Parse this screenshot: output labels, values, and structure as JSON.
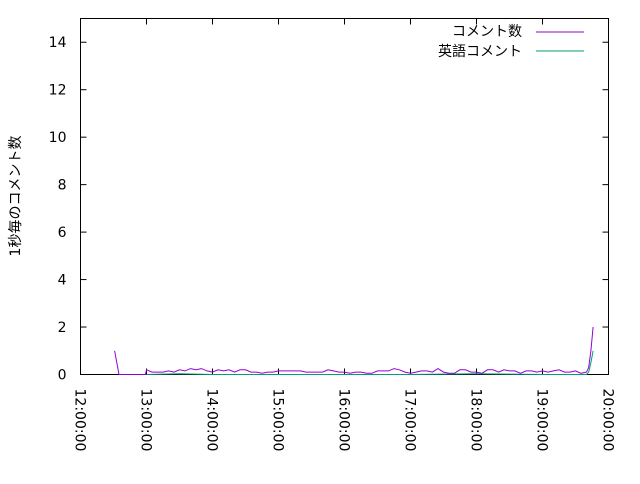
{
  "chart_data": {
    "type": "line",
    "title": "",
    "xlabel": "",
    "ylabel": "1秒毎のコメント数",
    "xlim": [
      "12:00:00",
      "20:00:00"
    ],
    "ylim": [
      0,
      15
    ],
    "x_ticks": [
      "12:00:00",
      "13:00:00",
      "14:00:00",
      "15:00:00",
      "16:00:00",
      "17:00:00",
      "18:00:00",
      "19:00:00",
      "20:00:00"
    ],
    "y_ticks": [
      0,
      2,
      4,
      6,
      8,
      10,
      12,
      14
    ],
    "grid": false,
    "legend_position": "top-right",
    "series": [
      {
        "name": "コメント数",
        "color": "#9400d3",
        "points": [
          [
            "12:31",
            1.0
          ],
          [
            "12:35",
            0
          ],
          [
            "12:59",
            0
          ],
          [
            "13:00",
            0.2
          ],
          [
            "13:05",
            0.1
          ],
          [
            "13:10",
            0.1
          ],
          [
            "13:15",
            0.1
          ],
          [
            "13:20",
            0.15
          ],
          [
            "13:25",
            0.1
          ],
          [
            "13:30",
            0.2
          ],
          [
            "13:35",
            0.15
          ],
          [
            "13:40",
            0.25
          ],
          [
            "13:45",
            0.2
          ],
          [
            "13:50",
            0.25
          ],
          [
            "13:55",
            0.15
          ],
          [
            "14:00",
            0.1
          ],
          [
            "14:05",
            0.2
          ],
          [
            "14:10",
            0.15
          ],
          [
            "14:15",
            0.2
          ],
          [
            "14:20",
            0.1
          ],
          [
            "14:25",
            0.2
          ],
          [
            "14:30",
            0.2
          ],
          [
            "14:35",
            0.1
          ],
          [
            "14:40",
            0.1
          ],
          [
            "14:45",
            0.05
          ],
          [
            "14:50",
            0.1
          ],
          [
            "14:55",
            0.1
          ],
          [
            "15:00",
            0.15
          ],
          [
            "15:05",
            0.15
          ],
          [
            "15:10",
            0.15
          ],
          [
            "15:15",
            0.15
          ],
          [
            "15:20",
            0.15
          ],
          [
            "15:25",
            0.1
          ],
          [
            "15:30",
            0.1
          ],
          [
            "15:35",
            0.1
          ],
          [
            "15:40",
            0.1
          ],
          [
            "15:45",
            0.2
          ],
          [
            "15:50",
            0.15
          ],
          [
            "15:55",
            0.1
          ],
          [
            "16:00",
            0.1
          ],
          [
            "16:05",
            0.05
          ],
          [
            "16:10",
            0.1
          ],
          [
            "16:15",
            0.1
          ],
          [
            "16:20",
            0.05
          ],
          [
            "16:25",
            0.05
          ],
          [
            "16:30",
            0.15
          ],
          [
            "16:35",
            0.15
          ],
          [
            "16:40",
            0.15
          ],
          [
            "16:45",
            0.25
          ],
          [
            "16:50",
            0.2
          ],
          [
            "16:55",
            0.1
          ],
          [
            "17:00",
            0.05
          ],
          [
            "17:05",
            0.1
          ],
          [
            "17:10",
            0.15
          ],
          [
            "17:15",
            0.15
          ],
          [
            "17:20",
            0.1
          ],
          [
            "17:25",
            0.25
          ],
          [
            "17:30",
            0.1
          ],
          [
            "17:35",
            0.05
          ],
          [
            "17:40",
            0.05
          ],
          [
            "17:45",
            0.2
          ],
          [
            "17:50",
            0.2
          ],
          [
            "17:55",
            0.1
          ],
          [
            "18:00",
            0.1
          ],
          [
            "18:05",
            0.05
          ],
          [
            "18:10",
            0.2
          ],
          [
            "18:15",
            0.2
          ],
          [
            "18:20",
            0.1
          ],
          [
            "18:25",
            0.2
          ],
          [
            "18:30",
            0.15
          ],
          [
            "18:35",
            0.15
          ],
          [
            "18:40",
            0.05
          ],
          [
            "18:45",
            0.15
          ],
          [
            "18:50",
            0.15
          ],
          [
            "18:55",
            0.1
          ],
          [
            "19:00",
            0.15
          ],
          [
            "19:05",
            0.1
          ],
          [
            "19:10",
            0.15
          ],
          [
            "19:15",
            0.2
          ],
          [
            "19:20",
            0.1
          ],
          [
            "19:25",
            0.1
          ],
          [
            "19:30",
            0.15
          ],
          [
            "19:35",
            0.05
          ],
          [
            "19:40",
            0.1
          ],
          [
            "19:42",
            0.3
          ],
          [
            "19:44",
            1.0
          ],
          [
            "19:46",
            2.0
          ]
        ]
      },
      {
        "name": "英語コメント",
        "color": "#009e73",
        "points": [
          [
            "13:00",
            0
          ],
          [
            "13:30",
            0.03
          ],
          [
            "14:00",
            0
          ],
          [
            "15:00",
            0
          ],
          [
            "16:00",
            0
          ],
          [
            "17:00",
            0
          ],
          [
            "18:00",
            0.03
          ],
          [
            "19:00",
            0
          ],
          [
            "19:40",
            0
          ],
          [
            "19:42",
            0.1
          ],
          [
            "19:44",
            0.5
          ],
          [
            "19:46",
            1.0
          ]
        ]
      }
    ]
  }
}
